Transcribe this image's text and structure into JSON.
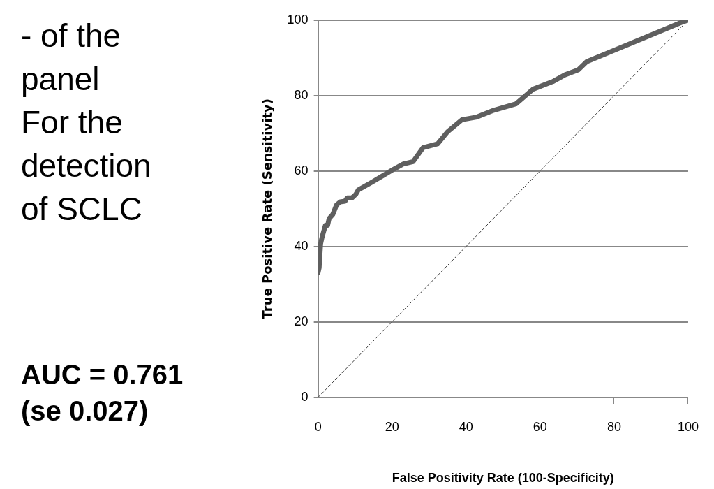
{
  "chart_data": {
    "type": "line",
    "xlabel": "False Positivity Rate (100-Specificity)",
    "ylabel": "True Positive Rate (Sensitivity)",
    "annotations": [
      "- of the panel For the detection of SCLC",
      "AUC = 0.761 (se 0.027)"
    ],
    "xlim": [
      0,
      100
    ],
    "ylim": [
      0,
      100
    ],
    "xticks": [
      0,
      20,
      40,
      60,
      80,
      100
    ],
    "yticks": [
      0,
      20,
      40,
      60,
      80,
      100
    ],
    "grid": "y",
    "legend": false,
    "marker": "none",
    "series": [
      {
        "color": "#5f5f5f",
        "line_style": "solid",
        "x": [
          0,
          0.3,
          0.7,
          1.1,
          2,
          2.6,
          3,
          4,
          5,
          6,
          7.3,
          7.9,
          9.2,
          10.2,
          10.9,
          14.5,
          20.5,
          23.1,
          25.7,
          28.4,
          32.3,
          35,
          38.9,
          42.9,
          47.5,
          53.5,
          58.1,
          63.4,
          66.7,
          70.3,
          72.6,
          98.2,
          100
        ],
        "values": [
          33,
          34.3,
          40.7,
          42.5,
          45.6,
          45.6,
          47.4,
          48.5,
          51,
          51.8,
          52,
          52.9,
          52.9,
          53.8,
          55,
          57,
          60.5,
          61.9,
          62.5,
          66.2,
          67.2,
          70.4,
          73.6,
          74.3,
          76.1,
          77.8,
          81.7,
          83.7,
          85.5,
          86.8,
          89,
          99.4,
          100
        ]
      },
      {
        "color": "#404040",
        "line_style": "dashed",
        "x": [
          0,
          100
        ],
        "values": [
          0,
          100
        ]
      }
    ]
  }
}
